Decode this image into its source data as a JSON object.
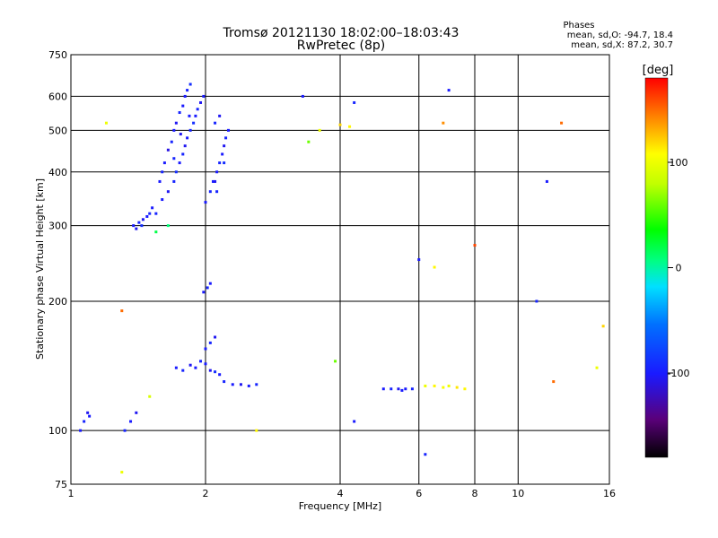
{
  "header": {
    "title": "Tromsø 20121130 18:02:00–18:03:43",
    "subtitle": "RwPretec (8p)",
    "stats_title": "Phases",
    "stats_line1": "mean, sd,O: -94.7, 18.4",
    "stats_line2": "mean, sd,X: 87.2, 30.7"
  },
  "colorbar": {
    "unit": "[deg]",
    "ticks": [
      "100",
      "0",
      "-100"
    ],
    "tick_values": [
      100,
      0,
      -100
    ],
    "range": [
      -180,
      180
    ]
  },
  "chart_data": {
    "type": "scatter",
    "title": "Tromsø 20121130 18:02:00–18:03:43",
    "subtitle": "RwPretec (8p)",
    "xlabel": "Frequency [MHz]",
    "ylabel": "Stationary phase Virtual Height [km]",
    "x_scale": "log",
    "y_scale": "log",
    "xlim": [
      1,
      16
    ],
    "ylim": [
      75,
      750
    ],
    "x_ticks": [
      1,
      2,
      4,
      6,
      8,
      10,
      16
    ],
    "x_tick_labels": [
      "1",
      "2",
      "4",
      "6",
      "8",
      "10",
      "16"
    ],
    "y_ticks": [
      75,
      100,
      200,
      300,
      400,
      500,
      600,
      750
    ],
    "y_tick_labels": [
      "75",
      "100",
      "200",
      "300",
      "400",
      "500",
      "600",
      "750"
    ],
    "grid": true,
    "color_by": "phase [deg]",
    "points": [
      [
        1.55,
        320,
        -95
      ],
      [
        1.6,
        345,
        -100
      ],
      [
        1.65,
        360,
        -105
      ],
      [
        1.7,
        380,
        -95
      ],
      [
        1.72,
        400,
        -90
      ],
      [
        1.75,
        420,
        -100
      ],
      [
        1.78,
        440,
        -95
      ],
      [
        1.8,
        460,
        -105
      ],
      [
        1.82,
        480,
        -100
      ],
      [
        1.85,
        500,
        -95
      ],
      [
        1.88,
        520,
        -90
      ],
      [
        1.9,
        540,
        -100
      ],
      [
        1.92,
        560,
        -95
      ],
      [
        1.95,
        580,
        -105
      ],
      [
        1.98,
        600,
        -100
      ],
      [
        1.6,
        400,
        -95
      ],
      [
        1.65,
        450,
        -110
      ],
      [
        1.7,
        500,
        -100
      ],
      [
        1.75,
        550,
        -95
      ],
      [
        1.8,
        600,
        -100
      ],
      [
        1.85,
        640,
        -90
      ],
      [
        1.62,
        420,
        -100
      ],
      [
        1.68,
        470,
        -95
      ],
      [
        1.72,
        520,
        -105
      ],
      [
        1.78,
        570,
        -100
      ],
      [
        1.82,
        620,
        -95
      ],
      [
        1.58,
        380,
        -100
      ],
      [
        1.7,
        430,
        -95
      ],
      [
        1.76,
        490,
        -105
      ],
      [
        1.84,
        540,
        -100
      ],
      [
        1.38,
        300,
        -100
      ],
      [
        1.42,
        305,
        -95
      ],
      [
        1.45,
        310,
        -105
      ],
      [
        1.48,
        315,
        -100
      ],
      [
        1.5,
        320,
        -95
      ],
      [
        1.52,
        330,
        -100
      ],
      [
        1.4,
        295,
        -105
      ],
      [
        1.44,
        300,
        -90
      ],
      [
        2.0,
        340,
        -100
      ],
      [
        2.05,
        360,
        -95
      ],
      [
        2.1,
        380,
        -105
      ],
      [
        2.12,
        400,
        -100
      ],
      [
        2.15,
        420,
        -95
      ],
      [
        2.18,
        440,
        -100
      ],
      [
        2.2,
        460,
        -105
      ],
      [
        2.22,
        480,
        -95
      ],
      [
        2.25,
        500,
        -100
      ],
      [
        2.1,
        520,
        -95
      ],
      [
        2.15,
        540,
        -105
      ],
      [
        2.2,
        420,
        -90
      ],
      [
        2.08,
        380,
        -100
      ],
      [
        2.12,
        360,
        -95
      ],
      [
        1.72,
        140,
        -100
      ],
      [
        1.78,
        138,
        -95
      ],
      [
        1.85,
        142,
        -105
      ],
      [
        1.9,
        140,
        -100
      ],
      [
        1.95,
        145,
        -95
      ],
      [
        2.0,
        143,
        -100
      ],
      [
        2.05,
        138,
        -105
      ],
      [
        2.1,
        137,
        -90
      ],
      [
        2.15,
        135,
        -100
      ],
      [
        2.2,
        130,
        -95
      ],
      [
        2.3,
        128,
        -100
      ],
      [
        2.4,
        128,
        -105
      ],
      [
        2.5,
        127,
        -100
      ],
      [
        2.6,
        128,
        -95
      ],
      [
        2.0,
        155,
        -100
      ],
      [
        2.05,
        160,
        -95
      ],
      [
        2.1,
        165,
        -105
      ],
      [
        1.98,
        210,
        -100
      ],
      [
        2.02,
        215,
        -95
      ],
      [
        2.05,
        220,
        -100
      ],
      [
        1.05,
        100,
        -100
      ],
      [
        1.07,
        105,
        -95
      ],
      [
        1.09,
        110,
        -105
      ],
      [
        1.1,
        108,
        -100
      ],
      [
        1.32,
        100,
        -95
      ],
      [
        1.36,
        105,
        -100
      ],
      [
        1.4,
        110,
        -105
      ],
      [
        5.0,
        125,
        -100
      ],
      [
        5.2,
        125,
        -95
      ],
      [
        5.4,
        125,
        -105
      ],
      [
        5.6,
        125,
        -100
      ],
      [
        5.8,
        125,
        -95
      ],
      [
        5.5,
        124,
        -100
      ],
      [
        6.2,
        127,
        100
      ],
      [
        6.5,
        127,
        110
      ],
      [
        6.8,
        126,
        105
      ],
      [
        7.0,
        127,
        100
      ],
      [
        7.3,
        126,
        115
      ],
      [
        7.6,
        125,
        110
      ],
      [
        3.3,
        600,
        -100
      ],
      [
        4.3,
        580,
        -95
      ],
      [
        7.0,
        620,
        -100
      ],
      [
        11.6,
        380,
        -100
      ],
      [
        6.0,
        250,
        -100
      ],
      [
        11.0,
        200,
        -95
      ],
      [
        4.3,
        105,
        -100
      ],
      [
        6.2,
        88,
        -95
      ],
      [
        3.4,
        470,
        60
      ],
      [
        3.6,
        500,
        100
      ],
      [
        4.2,
        510,
        110
      ],
      [
        4.0,
        515,
        120
      ],
      [
        6.8,
        520,
        140
      ],
      [
        12.5,
        520,
        150
      ],
      [
        8.0,
        270,
        160
      ],
      [
        6.5,
        240,
        110
      ],
      [
        15.5,
        175,
        120
      ],
      [
        12.0,
        130,
        150
      ],
      [
        15.0,
        140,
        100
      ],
      [
        1.3,
        190,
        150
      ],
      [
        1.3,
        80,
        100
      ],
      [
        1.5,
        120,
        90
      ],
      [
        2.6,
        100,
        110
      ],
      [
        3.9,
        145,
        60
      ],
      [
        1.2,
        520,
        100
      ],
      [
        1.55,
        290,
        20
      ],
      [
        1.65,
        300,
        10
      ]
    ]
  }
}
